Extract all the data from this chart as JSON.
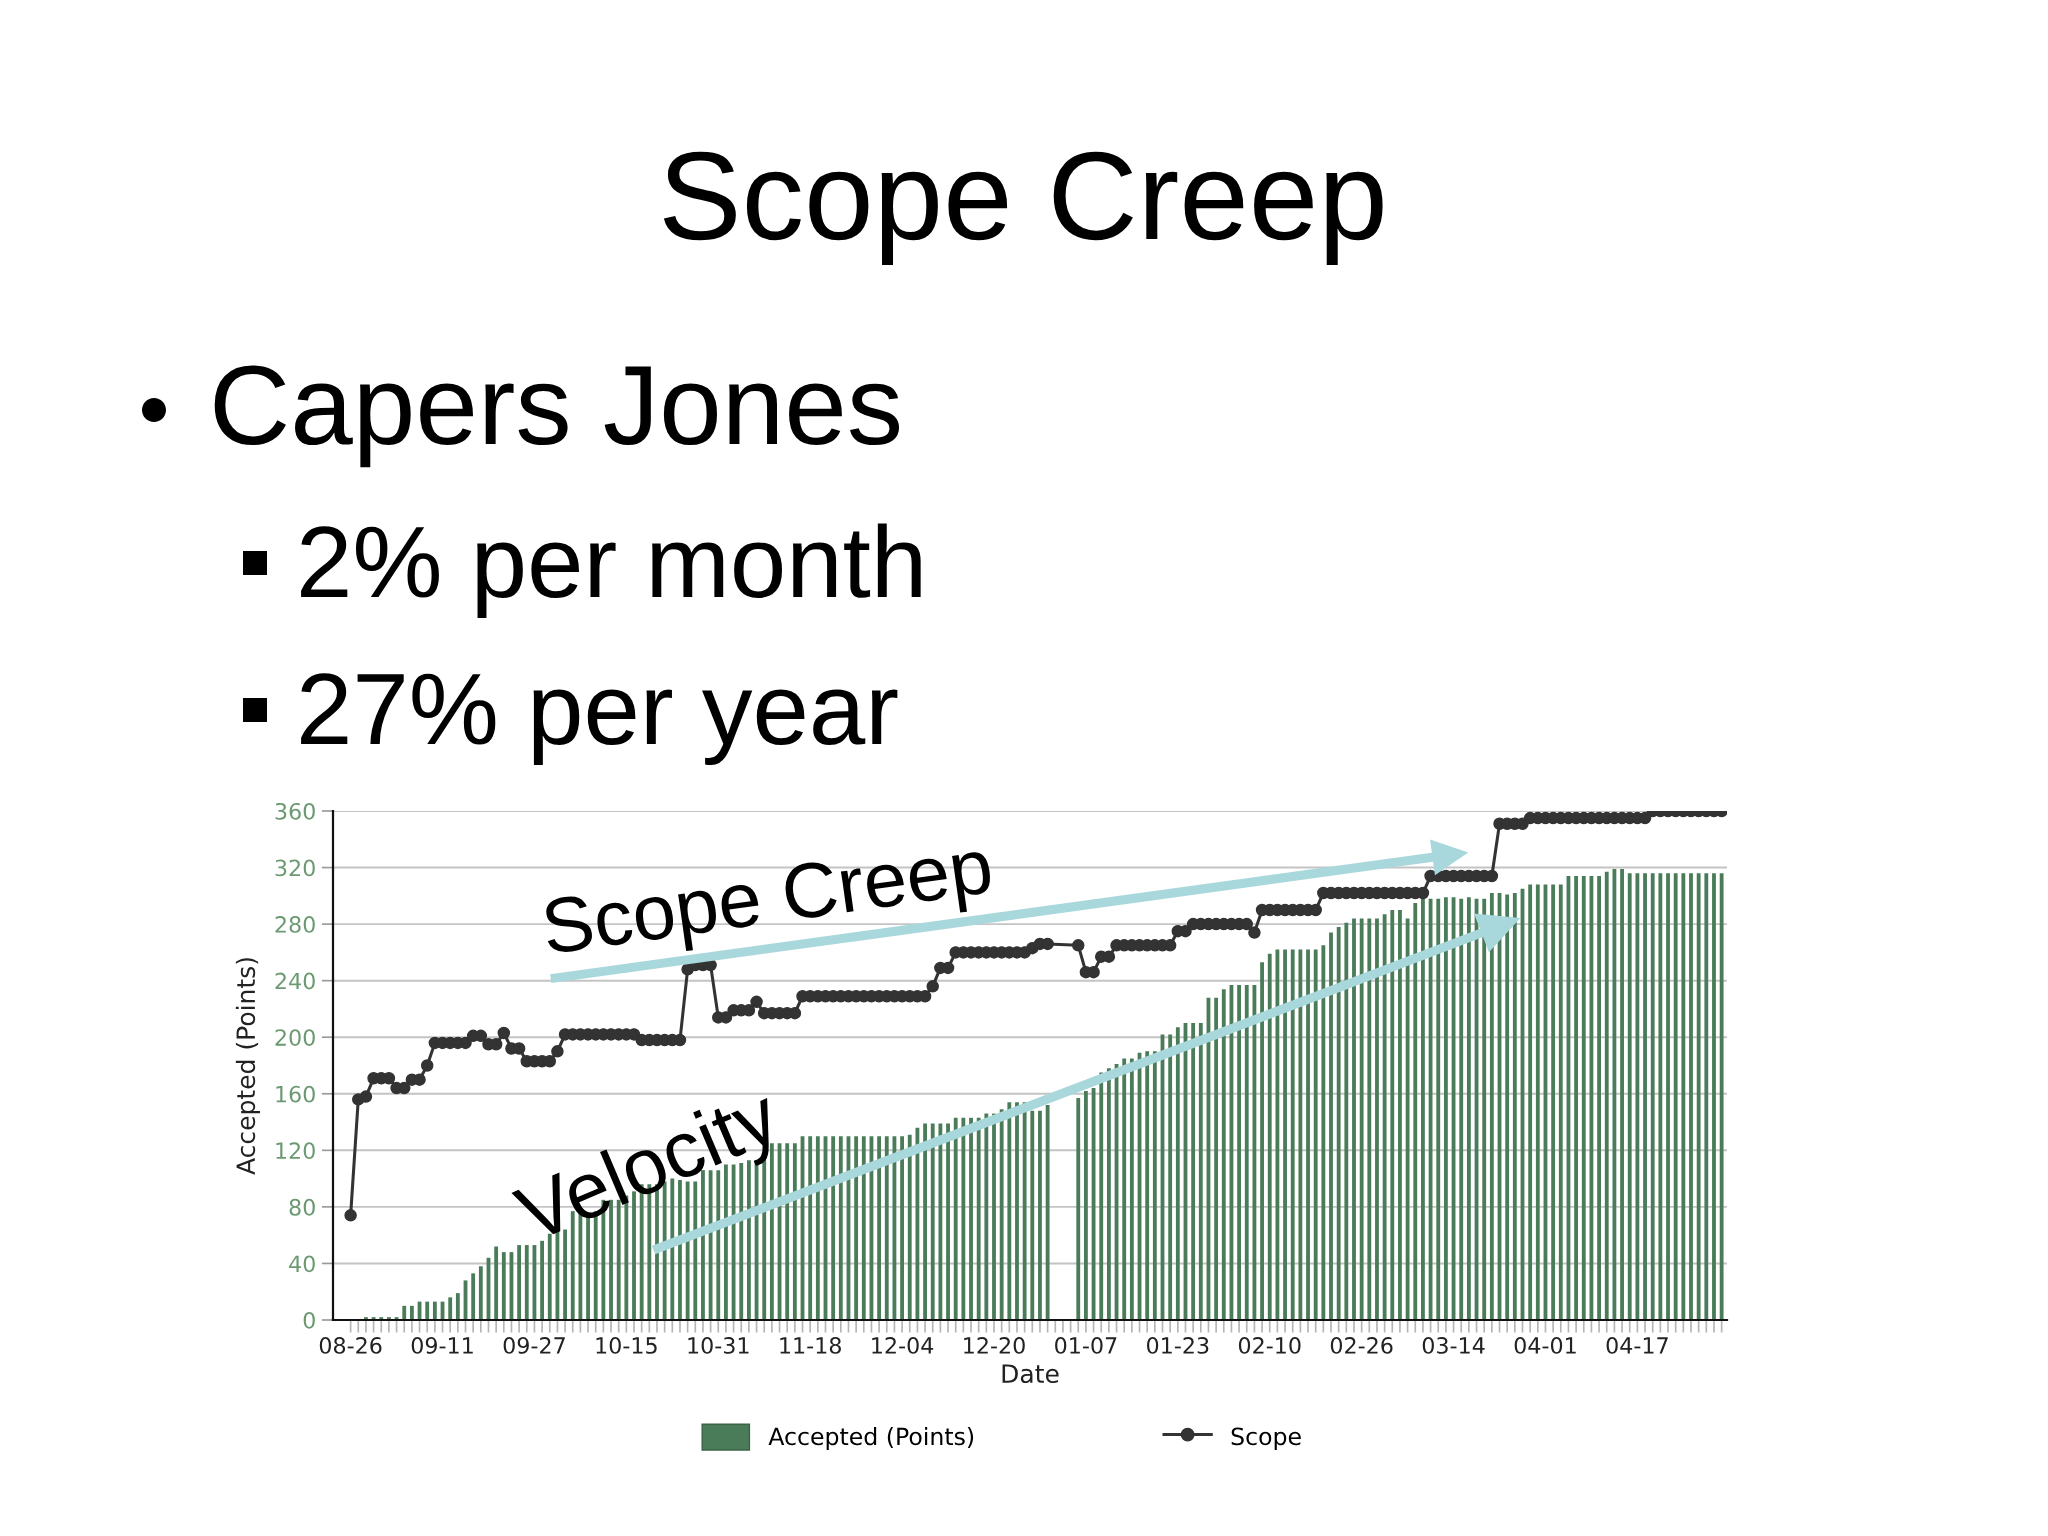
{
  "chart_data": {
    "type": "bar",
    "title": "Scope Creep",
    "annotations": [
      "Capers Jones",
      "2% per month",
      "27% per year",
      "Scope Creep",
      "Velocity"
    ],
    "xlabel": "Date",
    "ylabel": "Accepted (Points)",
    "categories": [
      "08-26",
      null,
      null,
      null,
      null,
      null,
      null,
      null,
      null,
      null,
      null,
      null,
      "09-11",
      null,
      null,
      null,
      null,
      null,
      null,
      null,
      null,
      null,
      null,
      null,
      "09-27",
      null,
      null,
      null,
      null,
      null,
      null,
      null,
      null,
      null,
      null,
      null,
      "10-15",
      null,
      null,
      null,
      null,
      null,
      null,
      null,
      null,
      null,
      null,
      null,
      "10-31",
      null,
      null,
      null,
      null,
      null,
      null,
      null,
      null,
      null,
      null,
      null,
      "11-18",
      null,
      null,
      null,
      null,
      null,
      null,
      null,
      null,
      null,
      null,
      null,
      "12-04",
      null,
      null,
      null,
      null,
      null,
      null,
      null,
      null,
      null,
      null,
      null,
      "12-20",
      null,
      null,
      null,
      null,
      null,
      null,
      null,
      null,
      null,
      null,
      null,
      "01-07",
      null,
      null,
      null,
      null,
      null,
      null,
      null,
      null,
      null,
      null,
      null,
      "01-23",
      null,
      null,
      null,
      null,
      null,
      null,
      null,
      null,
      null,
      null,
      null,
      "02-10",
      null,
      null,
      null,
      null,
      null,
      null,
      null,
      null,
      null,
      null,
      null,
      "02-26",
      null,
      null,
      null,
      null,
      null,
      null,
      null,
      null,
      null,
      null,
      null,
      "03-14",
      null,
      null,
      null,
      null,
      null,
      null,
      null,
      null,
      null,
      null,
      null,
      "04-01",
      null,
      null,
      null,
      null,
      null,
      null,
      null,
      null,
      null,
      null,
      null,
      "04-17",
      null,
      null,
      null,
      null,
      null,
      null,
      null,
      null,
      null,
      null,
      null
    ],
    "series": [
      {
        "name": "Accepted (Points)",
        "color": "#4a7c59",
        "values": [
          null,
          null,
          2,
          2,
          2,
          2,
          2,
          10,
          10,
          13,
          13,
          13,
          13,
          16,
          19,
          28,
          33,
          38,
          44,
          52,
          48,
          48,
          53,
          53,
          53,
          56,
          61,
          64,
          64,
          77,
          77,
          73,
          77,
          85,
          85,
          85,
          88,
          91,
          96,
          96,
          96,
          98,
          100,
          99,
          98,
          98,
          106,
          106,
          106,
          110,
          110,
          111,
          113,
          113,
          115,
          125,
          125,
          125,
          125,
          130,
          130,
          130,
          130,
          130,
          130,
          130,
          130,
          130,
          130,
          130,
          130,
          130,
          130,
          131,
          136,
          139,
          139,
          139,
          139,
          143,
          143,
          143,
          143,
          146,
          146,
          149,
          154,
          154,
          154,
          148,
          148,
          152,
          null,
          null,
          null,
          157,
          162,
          164,
          175,
          178,
          181,
          185,
          185,
          189,
          190,
          190,
          202,
          202,
          207,
          210,
          210,
          210,
          228,
          228,
          234,
          237,
          237,
          237,
          237,
          253,
          259,
          262,
          262,
          262,
          262,
          262,
          262,
          265,
          274,
          278,
          281,
          284,
          284,
          284,
          284,
          287,
          290,
          290,
          284,
          295,
          298,
          298,
          298,
          299,
          299,
          298,
          299,
          298,
          298,
          302,
          302,
          301,
          302,
          305,
          308,
          308,
          308,
          308,
          308,
          314,
          314,
          314,
          314,
          314,
          317,
          319,
          319,
          316,
          316,
          316,
          316,
          316,
          316,
          316,
          316,
          316,
          316,
          316,
          316,
          316
        ]
      },
      {
        "name": "Scope",
        "type": "line",
        "color": "#333333",
        "values": [
          74,
          156,
          158,
          171,
          171,
          171,
          164,
          164,
          170,
          170,
          180,
          196,
          196,
          196,
          196,
          196,
          201,
          201,
          195,
          195,
          203,
          192,
          192,
          183,
          183,
          183,
          183,
          190,
          202,
          202,
          202,
          202,
          202,
          202,
          202,
          202,
          202,
          202,
          198,
          198,
          198,
          198,
          198,
          198,
          248,
          251,
          251,
          251,
          214,
          214,
          219,
          219,
          219,
          225,
          217,
          217,
          217,
          217,
          217,
          229,
          229,
          229,
          229,
          229,
          229,
          229,
          229,
          229,
          229,
          229,
          229,
          229,
          229,
          229,
          229,
          229,
          236,
          249,
          249,
          260,
          260,
          260,
          260,
          260,
          260,
          260,
          260,
          260,
          260,
          263,
          266,
          266,
          null,
          null,
          null,
          265,
          246,
          246,
          257,
          257,
          265,
          265,
          265,
          265,
          265,
          265,
          265,
          265,
          275,
          275,
          280,
          280,
          280,
          280,
          280,
          280,
          280,
          280,
          274,
          290,
          290,
          290,
          290,
          290,
          290,
          290,
          290,
          302,
          302,
          302,
          302,
          302,
          302,
          302,
          302,
          302,
          302,
          302,
          302,
          302,
          302,
          314,
          314,
          314,
          314,
          314,
          314,
          314,
          314,
          314,
          351,
          351,
          351,
          351,
          355,
          355,
          355,
          355,
          355,
          355,
          355,
          355,
          355,
          355,
          355,
          355,
          355,
          355,
          355,
          355,
          360,
          360,
          360,
          360,
          360,
          360,
          360,
          360,
          360,
          360
        ]
      }
    ],
    "ylim": [
      0,
      360
    ],
    "yticks": [
      0,
      40,
      80,
      120,
      160,
      200,
      240,
      280,
      320,
      360
    ],
    "grid": "y",
    "legend": "bottom",
    "marker": "circle"
  }
}
